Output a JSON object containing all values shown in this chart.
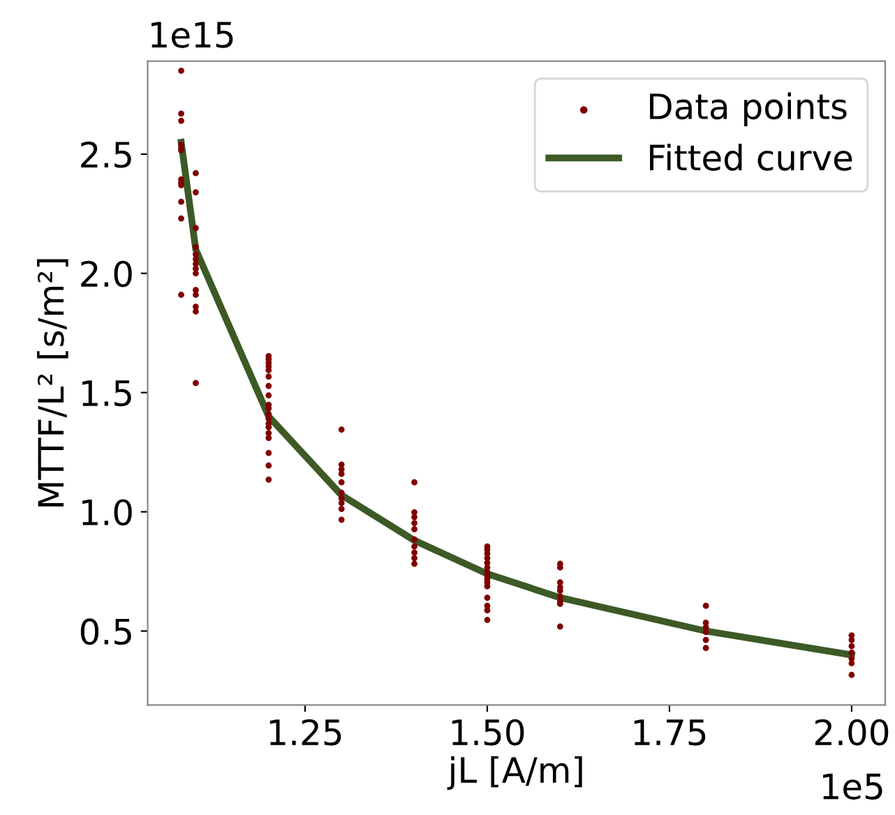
{
  "chart_data": {
    "type": "scatter",
    "xlabel": "jL [A/m]",
    "ylabel": "MTTF/L² [s/m²]",
    "annotations": [
      "1e15",
      "1e5"
    ],
    "xlim": [
      1.034,
      2.046
    ],
    "ylim": [
      0.19,
      2.89
    ],
    "xticks": [
      1.25,
      {
        "value": 1.5,
        "label": "1.50"
      },
      1.75,
      {
        "value": 2.0,
        "label": "2.00"
      }
    ],
    "yticks": [
      0.5,
      {
        "value": 1.0,
        "label": "1.0"
      },
      1.5,
      {
        "value": 2.0,
        "label": "2.0"
      },
      2.5
    ],
    "grid": false,
    "legend": "top right",
    "series": [
      {
        "name": "Data points",
        "color": "#800000",
        "marker": "circle",
        "x": [
          1.08,
          1.08,
          1.08,
          1.08,
          1.08,
          1.08,
          1.08,
          1.08,
          1.08,
          1.08,
          1.08,
          1.08,
          1.1,
          1.1,
          1.1,
          1.1,
          1.1,
          1.1,
          1.1,
          1.1,
          1.1,
          1.1,
          1.1,
          1.1,
          1.1,
          1.1,
          1.2,
          1.2,
          1.2,
          1.2,
          1.2,
          1.2,
          1.2,
          1.2,
          1.2,
          1.2,
          1.2,
          1.2,
          1.2,
          1.2,
          1.2,
          1.2,
          1.2,
          1.2,
          1.2,
          1.3,
          1.3,
          1.3,
          1.3,
          1.3,
          1.3,
          1.3,
          1.3,
          1.3,
          1.3,
          1.4,
          1.4,
          1.4,
          1.4,
          1.4,
          1.4,
          1.4,
          1.4,
          1.4,
          1.4,
          1.5,
          1.5,
          1.5,
          1.5,
          1.5,
          1.5,
          1.5,
          1.5,
          1.5,
          1.5,
          1.5,
          1.5,
          1.5,
          1.5,
          1.5,
          1.6,
          1.6,
          1.6,
          1.6,
          1.6,
          1.6,
          1.6,
          1.6,
          1.6,
          1.8,
          1.8,
          1.8,
          1.8,
          1.8,
          1.8,
          2.0,
          2.0,
          2.0,
          2.0,
          2.0,
          2.0,
          2.0
        ],
        "values": [
          2.85,
          2.67,
          2.64,
          2.54,
          2.525,
          2.516,
          2.394,
          2.38,
          2.37,
          2.3,
          2.23,
          1.91,
          2.42,
          2.34,
          2.19,
          2.11,
          2.08,
          2.06,
          2.04,
          2.02,
          2.0,
          1.93,
          1.91,
          1.86,
          1.84,
          1.54,
          1.653,
          1.64,
          1.625,
          1.61,
          1.594,
          1.567,
          1.528,
          1.488,
          1.449,
          1.434,
          1.41,
          1.39,
          1.37,
          1.355,
          1.33,
          1.31,
          1.247,
          1.194,
          1.135,
          1.345,
          1.198,
          1.178,
          1.159,
          1.124,
          1.08,
          1.057,
          1.037,
          1.012,
          0.967,
          1.124,
          0.998,
          0.978,
          0.953,
          0.927,
          0.884,
          0.855,
          0.829,
          0.806,
          0.782,
          0.855,
          0.841,
          0.825,
          0.806,
          0.786,
          0.766,
          0.747,
          0.731,
          0.718,
          0.704,
          0.688,
          0.64,
          0.606,
          0.587,
          0.547,
          0.782,
          0.767,
          0.704,
          0.684,
          0.669,
          0.645,
          0.625,
          0.614,
          0.519,
          0.606,
          0.535,
          0.516,
          0.496,
          0.463,
          0.429,
          0.482,
          0.463,
          0.437,
          0.41,
          0.384,
          0.365,
          0.316
        ]
      },
      {
        "name": "Fitted curve",
        "type": "line",
        "color": "#3d5a26",
        "marker": "none",
        "line_style": "solid",
        "x": [
          1.08,
          1.1,
          1.2,
          1.3,
          1.4,
          1.5,
          1.6,
          1.8,
          2.0
        ],
        "values": [
          2.55,
          2.1,
          1.4,
          1.07,
          0.88,
          0.74,
          0.64,
          0.5,
          0.4
        ]
      }
    ]
  }
}
